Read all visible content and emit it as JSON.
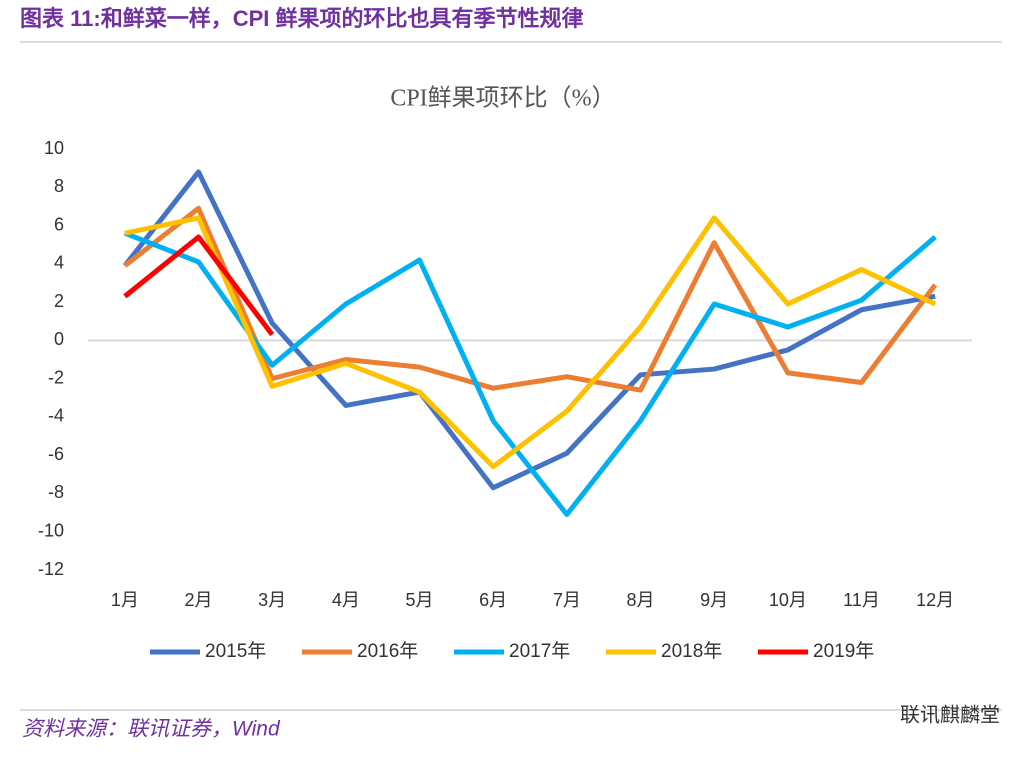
{
  "header": "图表 11:和鲜菜一样，CPI 鲜果项的环比也具有季节性规律",
  "chart_data": {
    "type": "line",
    "title": "CPI鲜果项环比（%）",
    "categories": [
      "1月",
      "2月",
      "3月",
      "4月",
      "5月",
      "6月",
      "7月",
      "8月",
      "9月",
      "10月",
      "11月",
      "12月"
    ],
    "series": [
      {
        "name": "2015年",
        "color": "#4472c4",
        "values": [
          3.9,
          8.8,
          0.9,
          -3.4,
          -2.7,
          -7.7,
          -5.9,
          -1.8,
          -1.5,
          -0.5,
          1.6,
          2.3
        ]
      },
      {
        "name": "2016年",
        "color": "#ed7d31",
        "values": [
          3.9,
          6.9,
          -2.0,
          -1.0,
          -1.4,
          -2.5,
          -1.9,
          -2.6,
          5.1,
          -1.7,
          -2.2,
          2.9
        ]
      },
      {
        "name": "2017年",
        "color": "#00b0f0",
        "values": [
          5.6,
          4.1,
          -1.3,
          1.9,
          4.2,
          -4.2,
          -9.1,
          -4.2,
          1.9,
          0.7,
          2.1,
          5.4
        ]
      },
      {
        "name": "2018年",
        "color": "#ffc000",
        "values": [
          5.6,
          6.4,
          -2.4,
          -1.2,
          -2.7,
          -6.6,
          -3.7,
          0.7,
          6.4,
          1.9,
          3.7,
          1.9
        ]
      },
      {
        "name": "2019年",
        "color": "#ff0000",
        "values": [
          2.3,
          5.4,
          0.3,
          null,
          null,
          null,
          null,
          null,
          null,
          null,
          null,
          null
        ]
      }
    ],
    "ylim": [
      -12,
      10
    ],
    "yticks": [
      10,
      8,
      6,
      4,
      2,
      0,
      -2,
      -4,
      -6,
      -8,
      -10,
      -12
    ],
    "grid": false,
    "legend": "bottom"
  },
  "source": "资料来源：联讯证券，Wind",
  "watermark": "联讯麒麟堂"
}
